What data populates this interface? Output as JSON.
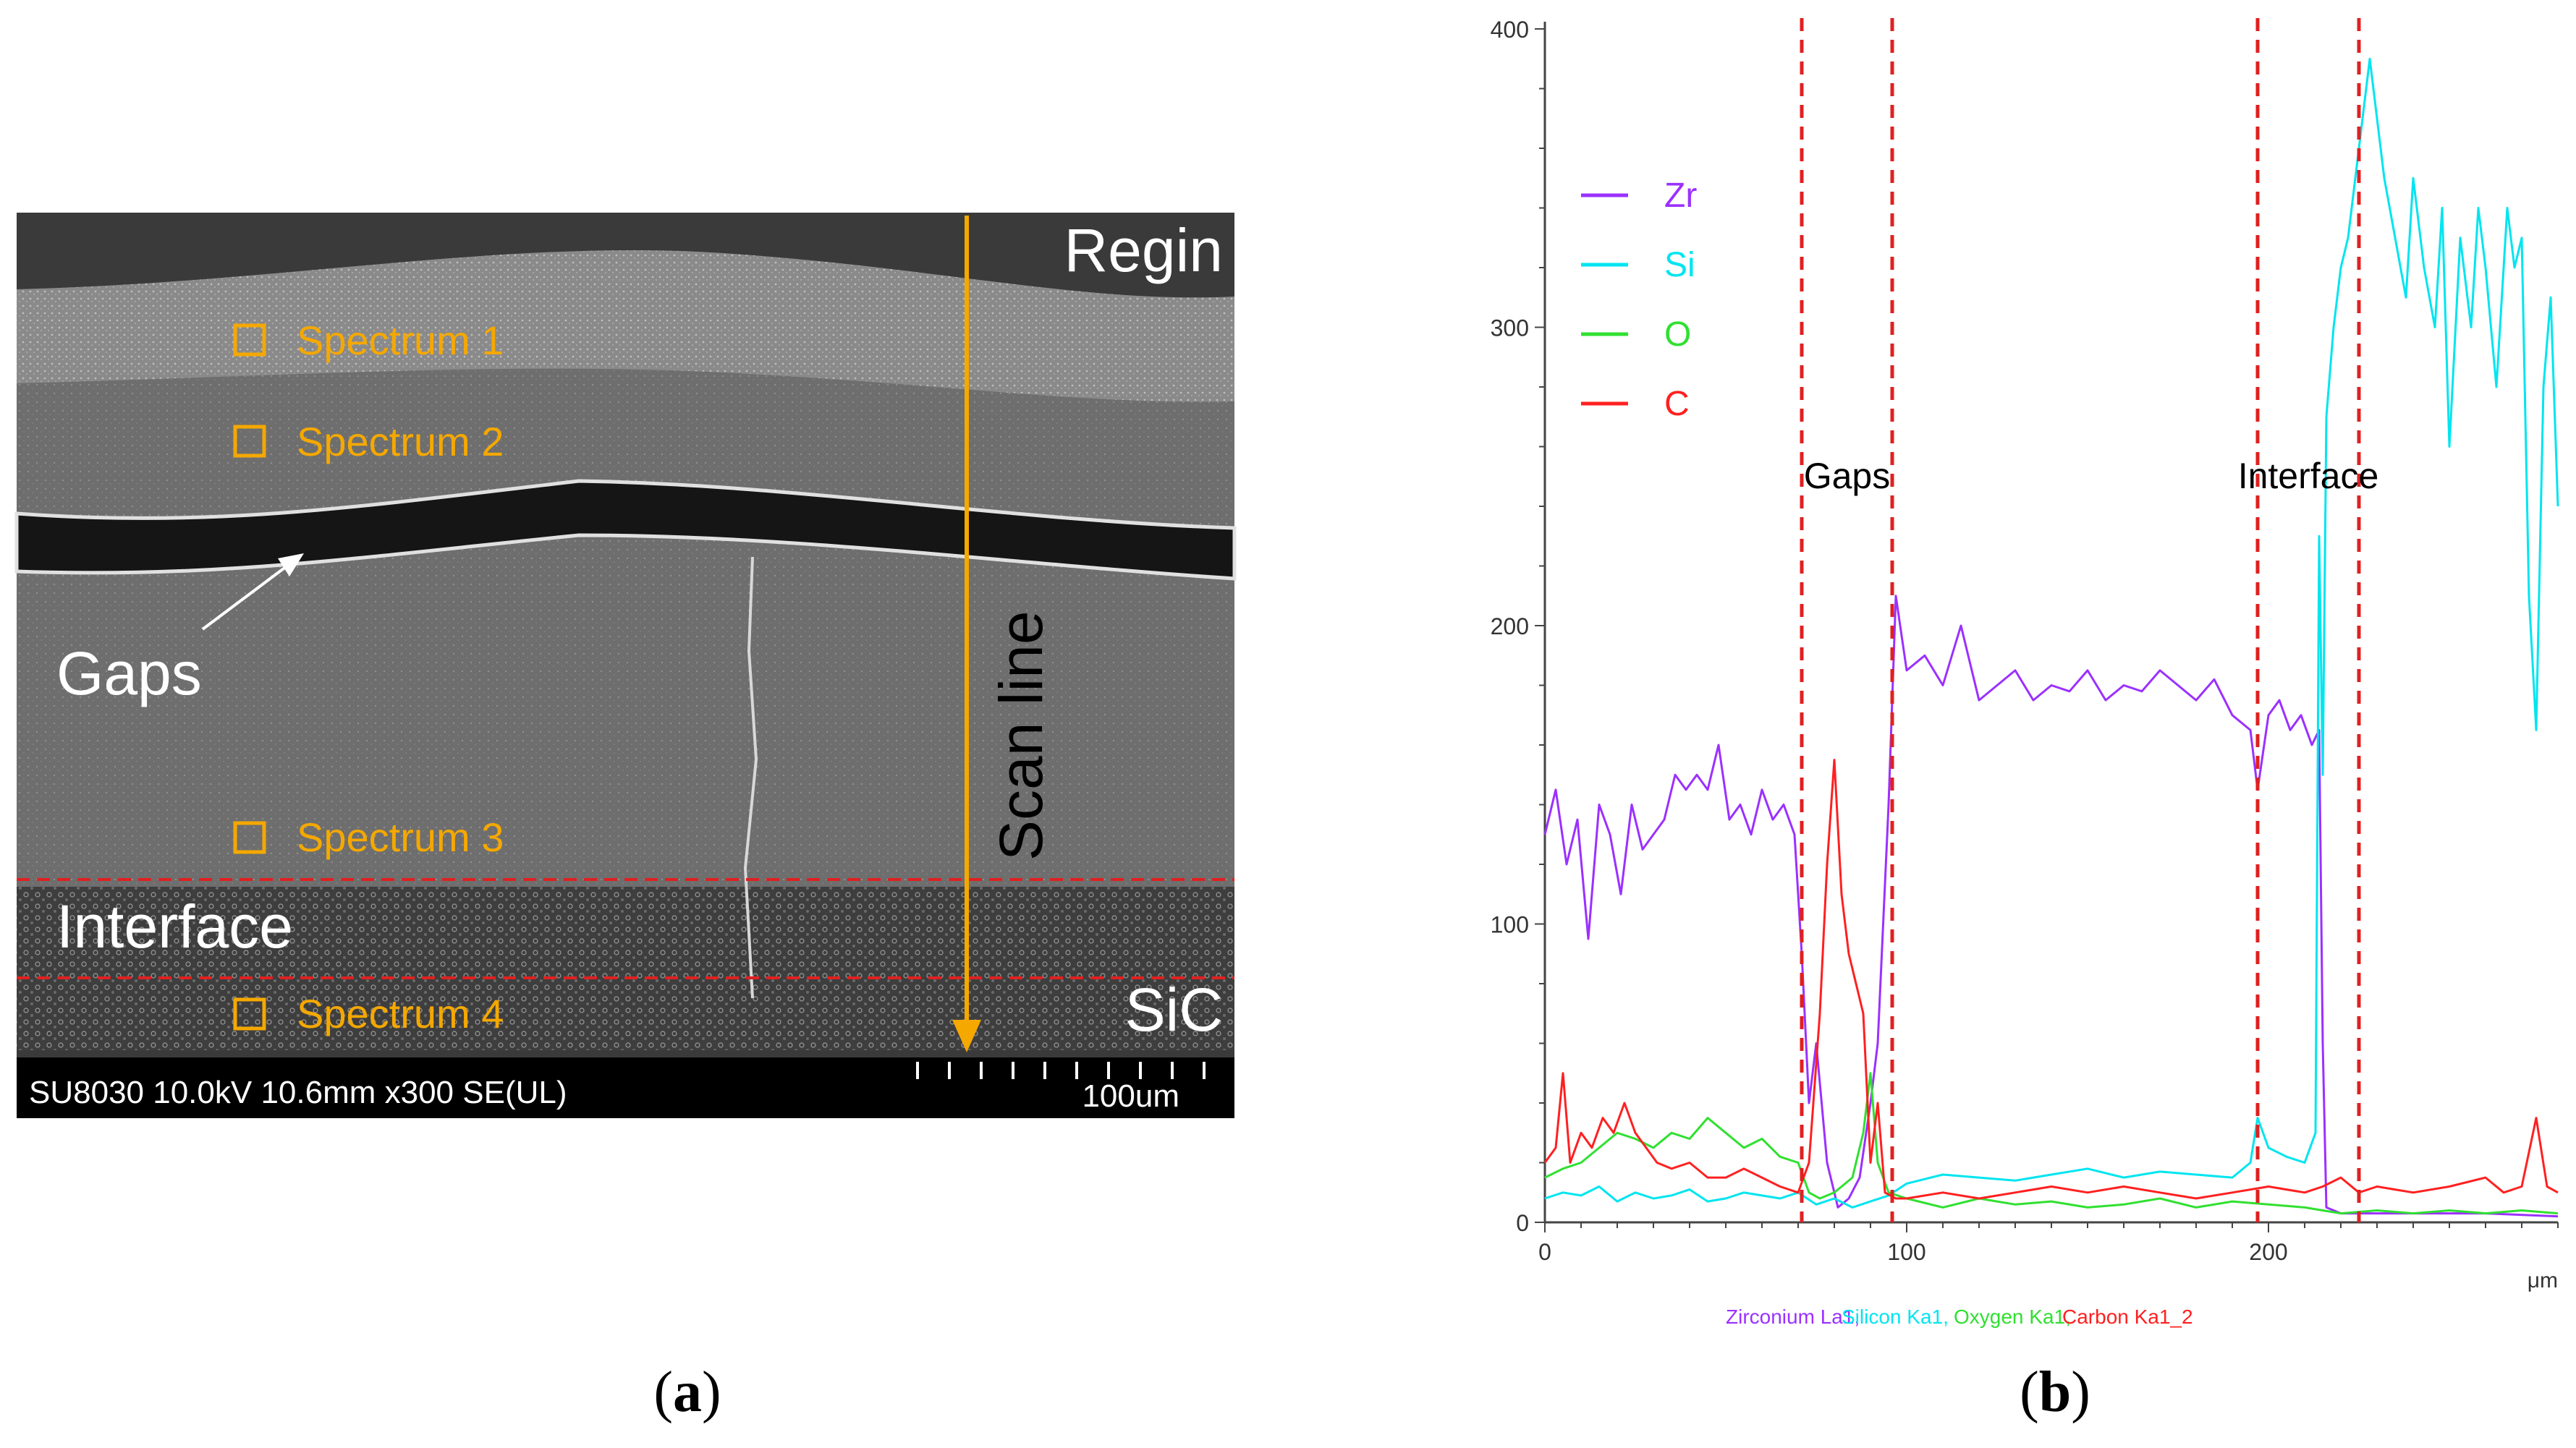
{
  "panel_a": {
    "caption_letter": "a",
    "labels": {
      "top_region": "Regin",
      "bottom_region": "SiC",
      "gaps": "Gaps",
      "interface": "Interface",
      "scan_line": "Scan line"
    },
    "spectra": [
      "Spectrum 1",
      "Spectrum 2",
      "Spectrum 3",
      "Spectrum 4"
    ],
    "info_bar": "SU8030 10.0kV 10.6mm x300 SE(UL)",
    "scale_bar": "100um",
    "colors": {
      "spectrum": "#f5a800",
      "scan_line": "#f5a800",
      "interface_line": "#e02020"
    }
  },
  "panel_b": {
    "caption_letter": "b",
    "chart_data": {
      "type": "line",
      "title": "",
      "xlabel": "μm",
      "ylabel": "",
      "xlim": [
        0,
        280
      ],
      "ylim": [
        0,
        400
      ],
      "x_ticks": [
        0,
        100,
        200
      ],
      "y_ticks": [
        0,
        100,
        200,
        300,
        400
      ],
      "legend": [
        "Zr",
        "Si",
        "O",
        "C"
      ],
      "legend_placement": "top-left",
      "footer_labels": [
        "Zirconium La1,",
        "Silicon Ka1,",
        "Oxygen Ka1,",
        "Carbon Ka1_2"
      ],
      "annotations": [
        {
          "text": "Gaps",
          "x_range": [
            71,
            96
          ]
        },
        {
          "text": "Interface",
          "x_range": [
            197,
            225
          ]
        }
      ],
      "series": [
        {
          "name": "Zr",
          "color": "#9b30ff",
          "points": [
            [
              0,
              130
            ],
            [
              3,
              145
            ],
            [
              6,
              120
            ],
            [
              9,
              135
            ],
            [
              12,
              95
            ],
            [
              15,
              140
            ],
            [
              18,
              130
            ],
            [
              21,
              110
            ],
            [
              24,
              140
            ],
            [
              27,
              125
            ],
            [
              30,
              130
            ],
            [
              33,
              135
            ],
            [
              36,
              150
            ],
            [
              39,
              145
            ],
            [
              42,
              150
            ],
            [
              45,
              145
            ],
            [
              48,
              160
            ],
            [
              51,
              135
            ],
            [
              54,
              140
            ],
            [
              57,
              130
            ],
            [
              60,
              145
            ],
            [
              63,
              135
            ],
            [
              66,
              140
            ],
            [
              69,
              130
            ],
            [
              71,
              90
            ],
            [
              73,
              40
            ],
            [
              75,
              60
            ],
            [
              78,
              20
            ],
            [
              81,
              5
            ],
            [
              84,
              8
            ],
            [
              87,
              15
            ],
            [
              90,
              40
            ],
            [
              92,
              60
            ],
            [
              95,
              140
            ],
            [
              97,
              210
            ],
            [
              100,
              185
            ],
            [
              105,
              190
            ],
            [
              110,
              180
            ],
            [
              115,
              200
            ],
            [
              120,
              175
            ],
            [
              125,
              180
            ],
            [
              130,
              185
            ],
            [
              135,
              175
            ],
            [
              140,
              180
            ],
            [
              145,
              178
            ],
            [
              150,
              185
            ],
            [
              155,
              175
            ],
            [
              160,
              180
            ],
            [
              165,
              178
            ],
            [
              170,
              185
            ],
            [
              175,
              180
            ],
            [
              180,
              175
            ],
            [
              185,
              182
            ],
            [
              190,
              170
            ],
            [
              195,
              165
            ],
            [
              197,
              145
            ],
            [
              200,
              170
            ],
            [
              203,
              175
            ],
            [
              206,
              165
            ],
            [
              209,
              170
            ],
            [
              212,
              160
            ],
            [
              214,
              165
            ],
            [
              215,
              60
            ],
            [
              216,
              5
            ],
            [
              220,
              3
            ],
            [
              240,
              3
            ],
            [
              260,
              3
            ],
            [
              280,
              2
            ]
          ]
        },
        {
          "name": "Si",
          "color": "#00e5f0",
          "points": [
            [
              0,
              8
            ],
            [
              5,
              10
            ],
            [
              10,
              9
            ],
            [
              15,
              12
            ],
            [
              20,
              7
            ],
            [
              25,
              10
            ],
            [
              30,
              8
            ],
            [
              35,
              9
            ],
            [
              40,
              11
            ],
            [
              45,
              7
            ],
            [
              50,
              8
            ],
            [
              55,
              10
            ],
            [
              60,
              9
            ],
            [
              65,
              8
            ],
            [
              70,
              10
            ],
            [
              75,
              6
            ],
            [
              80,
              8
            ],
            [
              85,
              5
            ],
            [
              90,
              7
            ],
            [
              95,
              9
            ],
            [
              100,
              13
            ],
            [
              110,
              16
            ],
            [
              120,
              15
            ],
            [
              130,
              14
            ],
            [
              140,
              16
            ],
            [
              150,
              18
            ],
            [
              160,
              15
            ],
            [
              170,
              17
            ],
            [
              180,
              16
            ],
            [
              190,
              15
            ],
            [
              195,
              20
            ],
            [
              197,
              35
            ],
            [
              200,
              25
            ],
            [
              205,
              22
            ],
            [
              210,
              20
            ],
            [
              213,
              30
            ],
            [
              214,
              230
            ],
            [
              215,
              150
            ],
            [
              216,
              270
            ],
            [
              218,
              300
            ],
            [
              220,
              320
            ],
            [
              222,
              330
            ],
            [
              225,
              360
            ],
            [
              228,
              390
            ],
            [
              230,
              370
            ],
            [
              232,
              350
            ],
            [
              235,
              330
            ],
            [
              238,
              310
            ],
            [
              240,
              350
            ],
            [
              243,
              320
            ],
            [
              246,
              300
            ],
            [
              248,
              340
            ],
            [
              250,
              260
            ],
            [
              253,
              330
            ],
            [
              256,
              300
            ],
            [
              258,
              340
            ],
            [
              260,
              320
            ],
            [
              263,
              280
            ],
            [
              266,
              340
            ],
            [
              268,
              320
            ],
            [
              270,
              330
            ],
            [
              272,
              210
            ],
            [
              274,
              165
            ],
            [
              276,
              280
            ],
            [
              278,
              310
            ],
            [
              280,
              240
            ]
          ]
        },
        {
          "name": "O",
          "color": "#30e030",
          "points": [
            [
              0,
              15
            ],
            [
              5,
              18
            ],
            [
              10,
              20
            ],
            [
              15,
              25
            ],
            [
              20,
              30
            ],
            [
              25,
              28
            ],
            [
              30,
              25
            ],
            [
              35,
              30
            ],
            [
              40,
              28
            ],
            [
              45,
              35
            ],
            [
              50,
              30
            ],
            [
              55,
              25
            ],
            [
              60,
              28
            ],
            [
              65,
              22
            ],
            [
              70,
              20
            ],
            [
              73,
              10
            ],
            [
              76,
              8
            ],
            [
              80,
              10
            ],
            [
              85,
              15
            ],
            [
              88,
              30
            ],
            [
              90,
              50
            ],
            [
              92,
              20
            ],
            [
              95,
              10
            ],
            [
              100,
              8
            ],
            [
              110,
              5
            ],
            [
              120,
              8
            ],
            [
              130,
              6
            ],
            [
              140,
              7
            ],
            [
              150,
              5
            ],
            [
              160,
              6
            ],
            [
              170,
              8
            ],
            [
              180,
              5
            ],
            [
              190,
              7
            ],
            [
              200,
              6
            ],
            [
              210,
              5
            ],
            [
              220,
              3
            ],
            [
              230,
              4
            ],
            [
              240,
              3
            ],
            [
              250,
              4
            ],
            [
              260,
              3
            ],
            [
              270,
              4
            ],
            [
              280,
              3
            ]
          ]
        },
        {
          "name": "C",
          "color": "#ff2020",
          "points": [
            [
              0,
              20
            ],
            [
              3,
              25
            ],
            [
              5,
              50
            ],
            [
              7,
              20
            ],
            [
              10,
              30
            ],
            [
              13,
              25
            ],
            [
              16,
              35
            ],
            [
              19,
              30
            ],
            [
              22,
              40
            ],
            [
              25,
              30
            ],
            [
              28,
              25
            ],
            [
              31,
              20
            ],
            [
              35,
              18
            ],
            [
              40,
              20
            ],
            [
              45,
              15
            ],
            [
              50,
              15
            ],
            [
              55,
              18
            ],
            [
              60,
              15
            ],
            [
              65,
              12
            ],
            [
              70,
              10
            ],
            [
              73,
              20
            ],
            [
              76,
              70
            ],
            [
              78,
              120
            ],
            [
              80,
              155
            ],
            [
              82,
              110
            ],
            [
              84,
              90
            ],
            [
              86,
              80
            ],
            [
              88,
              70
            ],
            [
              90,
              20
            ],
            [
              92,
              40
            ],
            [
              94,
              10
            ],
            [
              97,
              8
            ],
            [
              100,
              8
            ],
            [
              110,
              10
            ],
            [
              120,
              8
            ],
            [
              130,
              10
            ],
            [
              140,
              12
            ],
            [
              150,
              10
            ],
            [
              160,
              12
            ],
            [
              170,
              10
            ],
            [
              180,
              8
            ],
            [
              190,
              10
            ],
            [
              200,
              12
            ],
            [
              210,
              10
            ],
            [
              215,
              12
            ],
            [
              220,
              15
            ],
            [
              225,
              10
            ],
            [
              230,
              12
            ],
            [
              240,
              10
            ],
            [
              250,
              12
            ],
            [
              260,
              15
            ],
            [
              265,
              10
            ],
            [
              270,
              12
            ],
            [
              274,
              35
            ],
            [
              277,
              12
            ],
            [
              280,
              10
            ]
          ]
        }
      ]
    }
  }
}
